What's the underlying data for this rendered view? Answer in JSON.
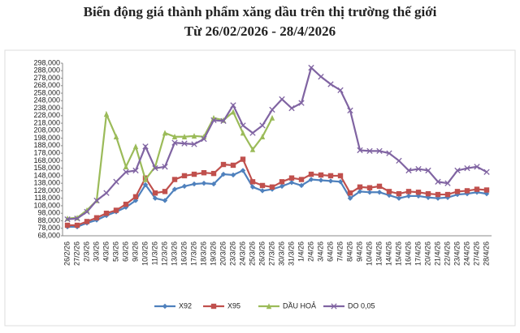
{
  "chart_data": {
    "type": "line",
    "title": "Biến động giá thành phẩm xăng dầu trên thị trường thế giới",
    "subtitle": "Từ 26/02/2026 - 28/4/2026",
    "categories": [
      "26/2/26",
      "27/2/26",
      "2/3/26",
      "3/3/26",
      "4/3/26",
      "5/3/26",
      "6/3/26",
      "9/3/26",
      "10/3/26",
      "11/3/26",
      "12/3/26",
      "13/3/26",
      "16/3/26",
      "17/3/26",
      "18/3/26",
      "19/3/26",
      "20/3/26",
      "23/3/26",
      "24/3/26",
      "25/3/26",
      "26/3/26",
      "27/3/26",
      "30/3/26",
      "31/3/26",
      "1/4/26",
      "2/4/26",
      "3/4/26",
      "6/4/26",
      "7/4/26",
      "8/4/26",
      "9/4/26",
      "10/4/26",
      "13/4/26",
      "14/4/26",
      "15/4/26",
      "16/4/26",
      "17/4/26",
      "20/4/26",
      "21/4/26",
      "22/4/26",
      "23/4/26",
      "24/4/26",
      "27/4/26",
      "28/4/26"
    ],
    "series": [
      {
        "name": "X92",
        "color": "#4f81bd",
        "marker": "diamond",
        "values": [
          80000,
          80000,
          85000,
          89000,
          95000,
          100000,
          106000,
          115000,
          136000,
          118000,
          115000,
          130000,
          134000,
          137000,
          138000,
          137000,
          150000,
          149000,
          155000,
          133000,
          128000,
          130000,
          134000,
          139000,
          135000,
          143000,
          142000,
          141000,
          140000,
          118000,
          127000,
          126000,
          126000,
          122000,
          118000,
          121000,
          121000,
          119000,
          118000,
          119000,
          123000,
          124000,
          126000,
          124000
        ]
      },
      {
        "name": "X95",
        "color": "#c0504d",
        "marker": "square",
        "values": [
          82000,
          82000,
          87000,
          92000,
          98000,
          102000,
          110000,
          120000,
          145000,
          125000,
          127000,
          143000,
          148000,
          150000,
          152000,
          151000,
          163000,
          162000,
          170000,
          140000,
          135000,
          133000,
          140000,
          145000,
          143000,
          150000,
          149000,
          148000,
          148000,
          125000,
          133000,
          132000,
          134000,
          127000,
          124000,
          127000,
          126000,
          124000,
          123000,
          123000,
          127000,
          128000,
          130000,
          129000
        ]
      },
      {
        "name": "DẦU HOẢ",
        "color": "#9bbb59",
        "marker": "triangle",
        "values": [
          91000,
          92000,
          102000,
          115000,
          230000,
          200000,
          160000,
          187000,
          143000,
          160000,
          205000,
          200000,
          200000,
          201000,
          200000,
          225000,
          222000,
          233000,
          205000,
          183000,
          200000,
          225000,
          null,
          null,
          null,
          null,
          null,
          null,
          null,
          null,
          null,
          null,
          null,
          null,
          null,
          null,
          null,
          null,
          null,
          null,
          null,
          null,
          null,
          null
        ]
      },
      {
        "name": "DO 0,05",
        "color": "#8064a2",
        "marker": "x",
        "values": [
          90000,
          91000,
          100000,
          115000,
          125000,
          140000,
          153000,
          155000,
          187000,
          158000,
          160000,
          192000,
          191000,
          190000,
          197000,
          222000,
          221000,
          242000,
          215000,
          205000,
          215000,
          236000,
          250000,
          238000,
          245000,
          292000,
          280000,
          270000,
          262000,
          235000,
          182000,
          181000,
          181000,
          178000,
          168000,
          155000,
          157000,
          155000,
          140000,
          138000,
          155000,
          158000,
          160000,
          153000
        ]
      }
    ],
    "ylim": [
      68000,
      298000
    ],
    "yticks": [
      {
        "value": 68000,
        "label": "68,000"
      },
      {
        "value": 78000,
        "label": "78,000"
      },
      {
        "value": 88000,
        "label": "88,000"
      },
      {
        "value": 98000,
        "label": "98,000"
      },
      {
        "value": 108000,
        "label": "108,000"
      },
      {
        "value": 118000,
        "label": "118,000"
      },
      {
        "value": 128000,
        "label": "128,000"
      },
      {
        "value": 138000,
        "label": "138,000"
      },
      {
        "value": 148000,
        "label": "148,000"
      },
      {
        "value": 158000,
        "label": "158,000"
      },
      {
        "value": 168000,
        "label": "168,000"
      },
      {
        "value": 178000,
        "label": "178,000"
      },
      {
        "value": 188000,
        "label": "188,000"
      },
      {
        "value": 198000,
        "label": "198,000"
      },
      {
        "value": 208000,
        "label": "208,000"
      },
      {
        "value": 218000,
        "label": "218,000"
      },
      {
        "value": 228000,
        "label": "228,000"
      },
      {
        "value": 238000,
        "label": "238,000"
      },
      {
        "value": 248000,
        "label": "248,000"
      },
      {
        "value": 258000,
        "label": "258,000"
      },
      {
        "value": 268000,
        "label": "268,000"
      },
      {
        "value": 278000,
        "label": "278,000"
      },
      {
        "value": 288000,
        "label": "288,000"
      },
      {
        "value": 298000,
        "label": "298,000"
      }
    ],
    "grid": false,
    "legend": "bottom"
  }
}
